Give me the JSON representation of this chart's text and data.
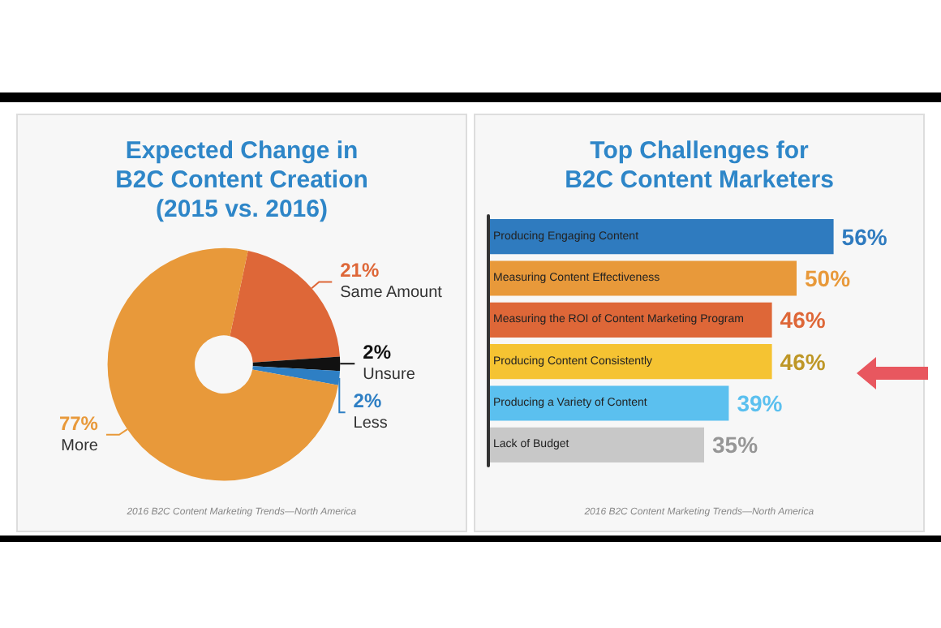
{
  "chart_data": [
    {
      "type": "donut",
      "title": "Expected Change in\nB2C Content Creation\n(2015 vs. 2016)",
      "categories": [
        "Same Amount",
        "Unsure",
        "Less",
        "More"
      ],
      "values": [
        21,
        2,
        2,
        77
      ],
      "colors": [
        "#de6738",
        "#111111",
        "#2e7fc4",
        "#e8993a"
      ],
      "value_labels": [
        "21%",
        "2%",
        "2%",
        "77%"
      ],
      "legend": false,
      "annotations": [
        "2016 B2C Content Marketing Trends—North America"
      ]
    },
    {
      "type": "bar",
      "orientation": "horizontal",
      "title": "Top Challenges for\nB2C Content Marketers",
      "categories": [
        "Producing Engaging Content",
        "Measuring Content Effectiveness",
        "Measuring the ROI of Content Marketing Program",
        "Producing Content Consistently",
        "Producing a Variety of Content",
        "Lack of Budget"
      ],
      "values": [
        56,
        50,
        46,
        46,
        39,
        35
      ],
      "colors": [
        "#2f7bbf",
        "#e8993a",
        "#de6738",
        "#f5c332",
        "#5bc0ef",
        "#c8c8c8"
      ],
      "value_labels": [
        "56%",
        "50%",
        "46%",
        "46%",
        "39%",
        "35%"
      ],
      "legend": false,
      "annotations": [
        "2016 B2C Content Marketing Trends—North America"
      ]
    }
  ]
}
